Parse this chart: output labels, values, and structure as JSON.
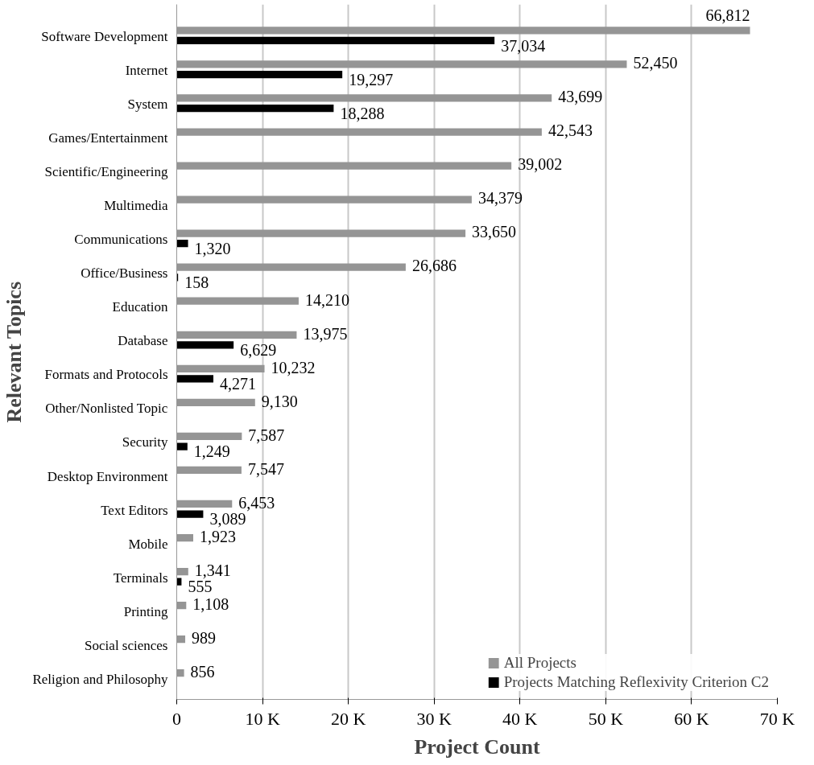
{
  "chart_data": {
    "type": "bar",
    "orientation": "horizontal",
    "xlabel": "Project Count",
    "ylabel": "Relevant Topics",
    "categories": [
      "Software Development",
      "Internet",
      "System",
      "Games/Entertainment",
      "Scientific/Engineering",
      "Multimedia",
      "Communications",
      "Office/Business",
      "Education",
      "Database",
      "Formats and Protocols",
      "Other/Nonlisted Topic",
      "Security",
      "Desktop Environment",
      "Text Editors",
      "Mobile",
      "Terminals",
      "Printing",
      "Social sciences",
      "Religion and Philosophy"
    ],
    "series": [
      {
        "name": "All Projects",
        "color": "#959595",
        "values": [
          66812,
          52450,
          43699,
          42543,
          39002,
          34379,
          33650,
          26686,
          14210,
          13975,
          10232,
          9130,
          7587,
          7547,
          6453,
          1923,
          1341,
          1108,
          989,
          856
        ],
        "value_labels": [
          "66,812",
          "52,450",
          "43,699",
          "42,543",
          "39,002",
          "34,379",
          "33,650",
          "26,686",
          "14,210",
          "13,975",
          "10,232",
          "9,130",
          "7,587",
          "7,547",
          "6,453",
          "1,923",
          "1,341",
          "1,108",
          "989",
          "856"
        ]
      },
      {
        "name": "Projects Matching Reflexivity Criterion C2",
        "color": "#000000",
        "values": [
          37034,
          19297,
          18288,
          null,
          null,
          null,
          1320,
          158,
          null,
          6629,
          4271,
          null,
          1249,
          null,
          3089,
          null,
          555,
          null,
          null,
          null
        ],
        "value_labels": [
          "37,034",
          "19,297",
          "18,288",
          null,
          null,
          null,
          "1,320",
          "158",
          null,
          "6,629",
          "4,271",
          null,
          "1,249",
          null,
          "3,089",
          null,
          "555",
          null,
          null,
          null
        ]
      }
    ],
    "xlim": [
      0,
      70000
    ],
    "xticks": [
      0,
      {
        "value": 10000,
        "label": "10 K"
      },
      {
        "value": 20000,
        "label": "20 K"
      },
      {
        "value": 30000,
        "label": "30 K"
      },
      {
        "value": 40000,
        "label": "40 K"
      },
      {
        "value": 50000,
        "label": "50 K"
      },
      {
        "value": 60000,
        "label": "60 K"
      },
      {
        "value": 70000,
        "label": "70 K"
      }
    ],
    "grid": "x",
    "legend": "bottom right"
  }
}
